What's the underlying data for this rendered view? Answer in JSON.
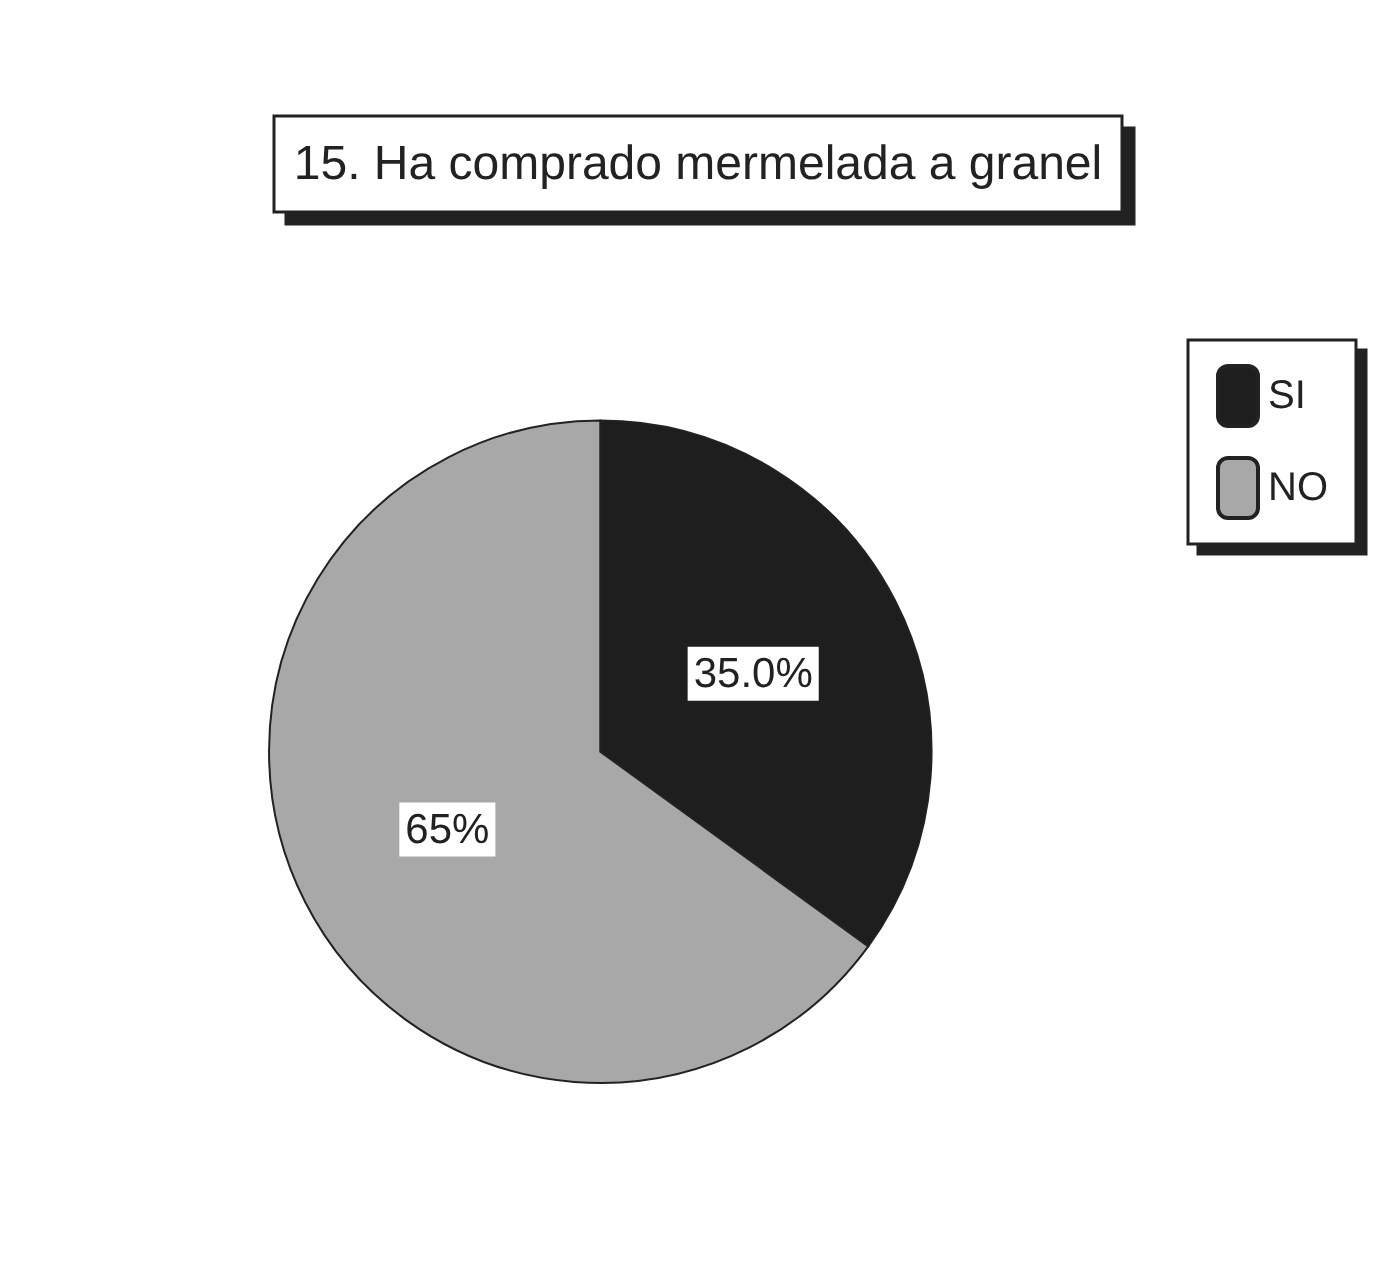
{
  "chart_data": {
    "type": "pie",
    "title": "15. Ha comprado mermelada a granel",
    "categories": [
      "SI",
      "NO"
    ],
    "values": [
      35,
      65
    ],
    "value_labels": [
      "35.0%",
      "65%"
    ],
    "colors": [
      "#1e1e1e",
      "#a8a8a8"
    ],
    "legend": "top right"
  }
}
